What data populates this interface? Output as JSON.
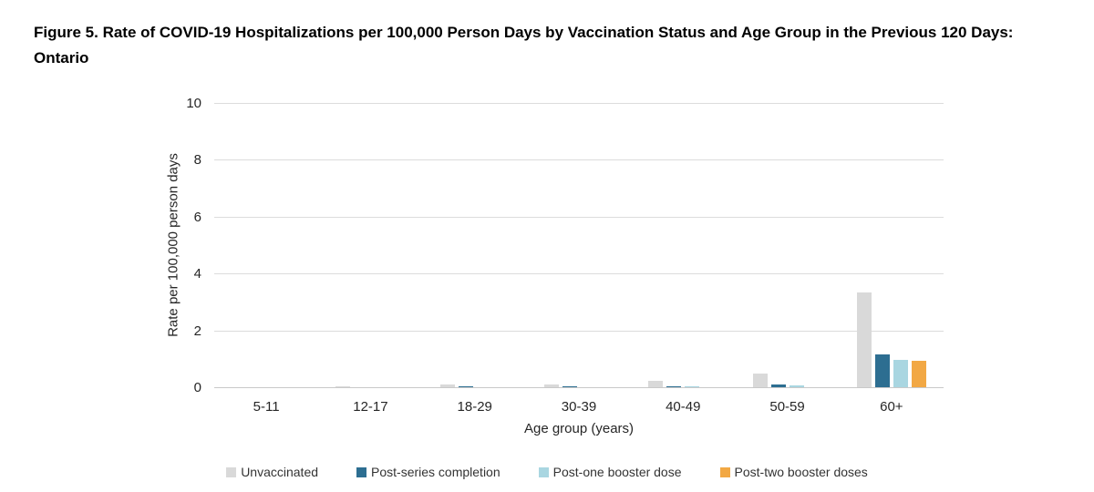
{
  "chart_data": {
    "type": "bar",
    "title": "Figure 5. Rate of COVID-19 Hospitalizations per 100,000 Person Days by Vaccination Status and Age Group in the Previous 120 Days: Ontario",
    "xlabel": "Age group (years)",
    "ylabel": "Rate per 100,000 person days",
    "ylim": [
      0,
      10
    ],
    "yticks": [
      0,
      2,
      4,
      6,
      8,
      10
    ],
    "grid": true,
    "legend_position": "bottom",
    "categories": [
      "5-11",
      "12-17",
      "18-29",
      "30-39",
      "40-49",
      "50-59",
      "60+"
    ],
    "series": [
      {
        "name": "Unvaccinated",
        "color": "#d9d9d9",
        "values": [
          0.04,
          0.08,
          0.13,
          0.14,
          0.25,
          0.5,
          3.35
        ]
      },
      {
        "name": "Post-series completion",
        "color": "#2d6e91",
        "values": [
          0,
          0,
          0.06,
          0.06,
          0.06,
          0.13,
          1.2
        ]
      },
      {
        "name": "Post-one booster dose",
        "color": "#a9d6e1",
        "values": [
          0,
          0,
          0.03,
          0.04,
          0.05,
          0.1,
          1.0
        ]
      },
      {
        "name": "Post-two booster doses",
        "color": "#f2a844",
        "values": [
          0,
          0,
          0,
          0,
          0,
          0,
          0.95
        ]
      }
    ]
  }
}
